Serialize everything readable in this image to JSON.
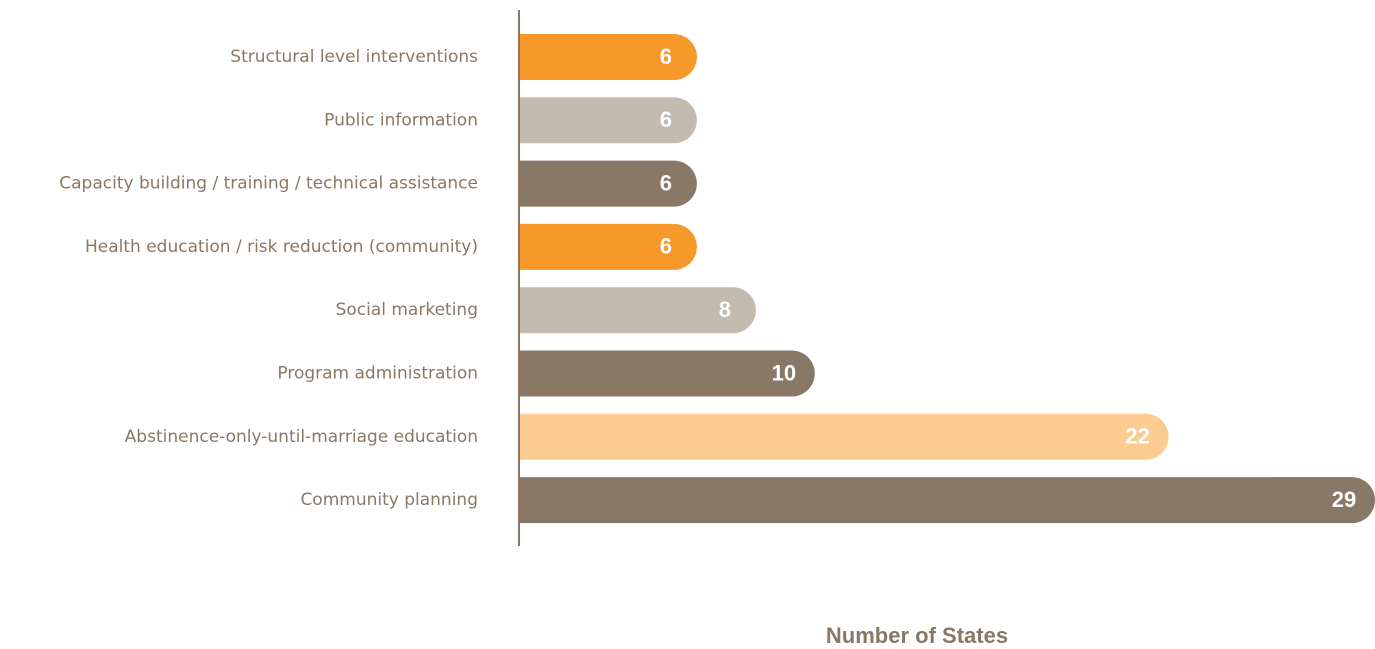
{
  "chart_data": {
    "type": "bar",
    "orientation": "horizontal",
    "categories": [
      "Structural level interventions",
      "Public information",
      "Capacity building / training / technical assistance",
      "Health education / risk reduction (community)",
      "Social marketing",
      "Program administration",
      "Abstinence-only-until-marriage education",
      "Community planning"
    ],
    "values": [
      6,
      6,
      6,
      6,
      8,
      10,
      22,
      29
    ],
    "colors": [
      "#f7982a",
      "#c4bbb0",
      "#8a7866",
      "#f7982a",
      "#c4bbb0",
      "#8a7866",
      "#fbcb92",
      "#8a7866"
    ],
    "x_label": "Number of States"
  }
}
